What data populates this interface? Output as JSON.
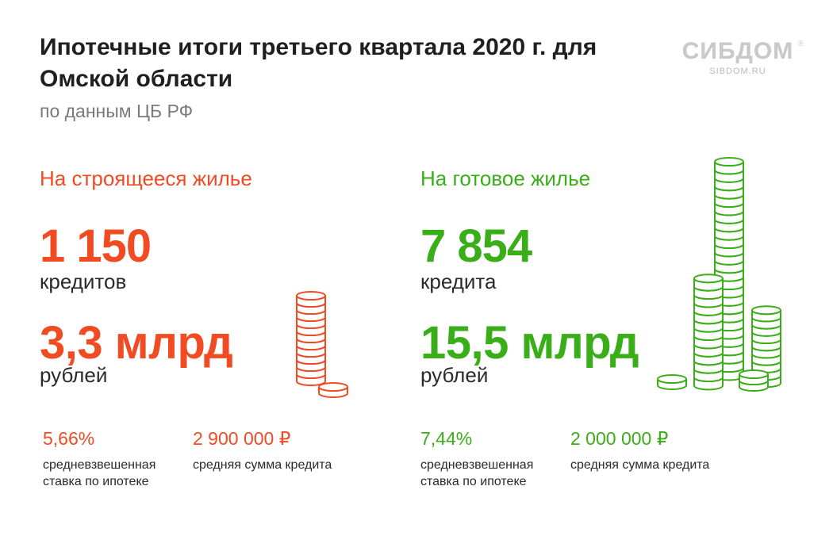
{
  "header": {
    "title": "Ипотечные итоги третьего квартала 2020 г. для Омской области",
    "subtitle": "по данным ЦБ РФ"
  },
  "logo": {
    "name": "СИБДОМ",
    "url": "SIBDOM.RU"
  },
  "colors": {
    "accent_red": "#f04b23",
    "accent_green": "#3aae19"
  },
  "under_construction": {
    "heading": "На строящееся жилье",
    "loans_count": "1 150",
    "loans_unit": "кредитов",
    "volume": "3,3 млрд",
    "volume_unit": "рублей",
    "rate_value": "5,66%",
    "rate_label": "средневзвешенная ставка по ипотеке",
    "avg_sum_value": "2 900 000 ₽",
    "avg_sum_label": "средняя сумма кредита"
  },
  "finished": {
    "heading": "На готовое жилье",
    "loans_count": "7 854",
    "loans_unit": "кредита",
    "volume": "15,5 млрд",
    "volume_unit": "рублей",
    "rate_value": "7,44%",
    "rate_label": "средневзвешенная ставка по ипотеке",
    "avg_sum_value": "2 000 000 ₽",
    "avg_sum_label": "средняя сумма кредита"
  },
  "icons": {
    "left_coins": "coin-stack-icon",
    "right_coins": "coin-stacks-icon"
  }
}
